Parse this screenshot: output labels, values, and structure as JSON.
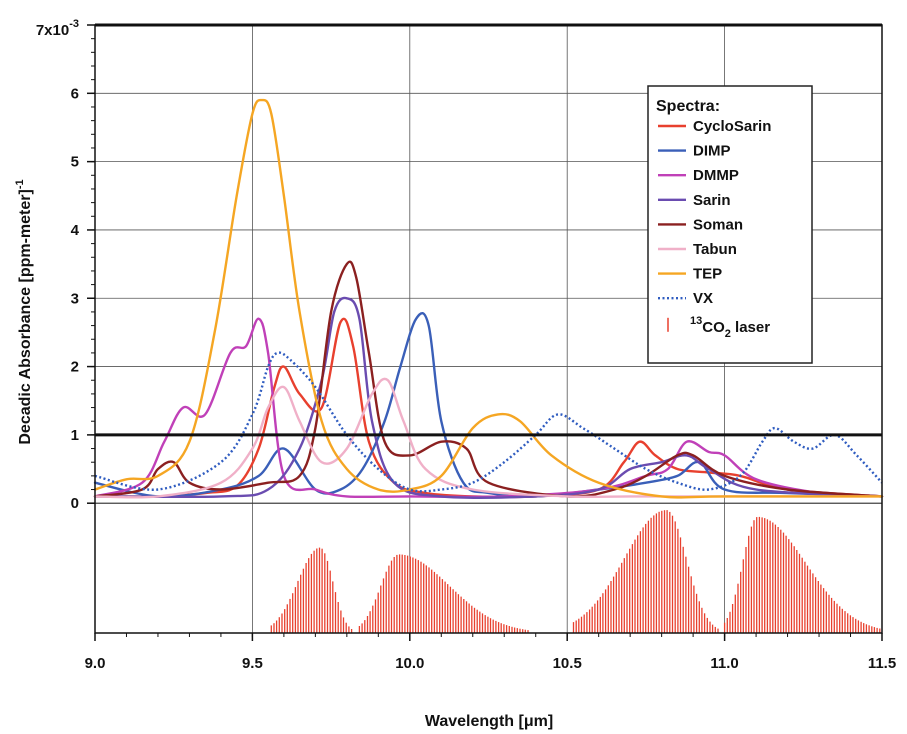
{
  "chart_data": {
    "type": "line",
    "xlabel": "Wavelength [μm]",
    "ylabel": "Decadic Absorbance [ppm-meter]",
    "ylabel_sup": "-1",
    "xlim": [
      9.0,
      11.5
    ],
    "ylim": [
      -0.0019,
      0.007
    ],
    "x_ticks": [
      "9.0",
      "9.5",
      "10.0",
      "10.5",
      "11.0",
      "11.5"
    ],
    "y_ticks": [
      "0",
      "1",
      "2",
      "3",
      "4",
      "5",
      "6"
    ],
    "y_top_tick": {
      "base": "7x10",
      "exponent": "-3"
    },
    "y_scale_factor": "x10^-3",
    "grid": true,
    "legend_title": "Spectra:",
    "legend_position": "upper-right",
    "series": [
      {
        "name": "CycloSarin",
        "color": "#e8402e",
        "style": "solid",
        "x": [
          9.0,
          9.2,
          9.35,
          9.45,
          9.52,
          9.57,
          9.6,
          9.65,
          9.72,
          9.78,
          9.82,
          9.87,
          9.95,
          10.05,
          10.2,
          10.4,
          10.6,
          10.68,
          10.73,
          10.78,
          10.85,
          10.95,
          11.05,
          11.2,
          11.5
        ],
        "y": [
          0.0001,
          0.0001,
          0.00015,
          0.00025,
          0.0008,
          0.0017,
          0.002,
          0.0016,
          0.0014,
          0.00265,
          0.0023,
          0.0009,
          0.0003,
          0.00015,
          0.0001,
          0.0001,
          0.0002,
          0.0006,
          0.0009,
          0.0007,
          0.0005,
          0.00045,
          0.0004,
          0.0002,
          0.0001
        ]
      },
      {
        "name": "DIMP",
        "color": "#3a5fb8",
        "style": "solid",
        "x": [
          9.0,
          9.2,
          9.4,
          9.52,
          9.6,
          9.7,
          9.78,
          9.85,
          9.92,
          9.97,
          10.02,
          10.06,
          10.1,
          10.17,
          10.25,
          10.4,
          10.6,
          10.75,
          10.85,
          10.92,
          11.0,
          11.2,
          11.5
        ],
        "y": [
          0.0003,
          0.0001,
          0.0002,
          0.0004,
          0.0008,
          0.0002,
          0.0002,
          0.0005,
          0.0012,
          0.002,
          0.0027,
          0.0026,
          0.0012,
          0.0003,
          0.00015,
          0.0001,
          0.0002,
          0.0003,
          0.0004,
          0.0006,
          0.0002,
          0.00015,
          0.0001
        ]
      },
      {
        "name": "DMMP",
        "color": "#c040b8",
        "style": "solid",
        "x": [
          9.0,
          9.15,
          9.22,
          9.28,
          9.35,
          9.43,
          9.48,
          9.52,
          9.55,
          9.6,
          9.7,
          9.8,
          10.0,
          10.3,
          10.6,
          10.75,
          10.82,
          10.88,
          10.95,
          11.0,
          11.1,
          11.3,
          11.5
        ],
        "y": [
          0.0001,
          0.0003,
          0.0009,
          0.0014,
          0.0013,
          0.0022,
          0.0023,
          0.0027,
          0.0022,
          0.0004,
          0.0002,
          0.0001,
          0.0001,
          0.0001,
          0.0002,
          0.0004,
          0.0005,
          0.0009,
          0.00075,
          0.0007,
          0.00035,
          0.00015,
          0.0001
        ]
      },
      {
        "name": "Sarin",
        "color": "#6a4cb0",
        "style": "solid",
        "x": [
          9.0,
          9.4,
          9.55,
          9.65,
          9.72,
          9.76,
          9.8,
          9.84,
          9.88,
          9.95,
          10.1,
          10.4,
          10.6,
          10.7,
          10.8,
          10.88,
          10.95,
          11.1,
          11.5
        ],
        "y": [
          0.0001,
          0.0001,
          0.0002,
          0.0008,
          0.0018,
          0.0028,
          0.003,
          0.0027,
          0.0012,
          0.0003,
          0.0001,
          0.0001,
          0.0002,
          0.0005,
          0.0006,
          0.0007,
          0.0005,
          0.0002,
          0.0001
        ]
      },
      {
        "name": "Soman",
        "color": "#8b2020",
        "style": "solid",
        "x": [
          9.0,
          9.15,
          9.2,
          9.25,
          9.3,
          9.4,
          9.55,
          9.65,
          9.7,
          9.75,
          9.8,
          9.83,
          9.87,
          9.92,
          10.0,
          10.1,
          10.18,
          10.25,
          10.5,
          10.65,
          10.75,
          10.85,
          10.9,
          11.0,
          11.2,
          11.5
        ],
        "y": [
          0.0001,
          0.0002,
          0.0005,
          0.0006,
          0.0003,
          0.0002,
          0.0003,
          0.0004,
          0.0011,
          0.0028,
          0.0035,
          0.0033,
          0.0022,
          0.0009,
          0.0007,
          0.0009,
          0.0008,
          0.0003,
          0.0001,
          0.0002,
          0.0004,
          0.0007,
          0.0007,
          0.0004,
          0.0002,
          0.0001
        ]
      },
      {
        "name": "Tabun",
        "color": "#f0b0c8",
        "style": "solid",
        "x": [
          9.0,
          9.2,
          9.4,
          9.5,
          9.55,
          9.6,
          9.65,
          9.72,
          9.8,
          9.88,
          9.93,
          9.98,
          10.05,
          10.2,
          10.5,
          10.7,
          11.0,
          11.5
        ],
        "y": [
          0.0001,
          0.0001,
          0.0003,
          0.0008,
          0.0014,
          0.0017,
          0.0012,
          0.0006,
          0.0008,
          0.0016,
          0.0018,
          0.0012,
          0.0005,
          0.0002,
          0.0001,
          0.0001,
          0.0001,
          0.0001
        ]
      },
      {
        "name": "TEP",
        "color": "#f5a623",
        "style": "solid",
        "x": [
          9.0,
          9.1,
          9.2,
          9.3,
          9.38,
          9.45,
          9.5,
          9.53,
          9.56,
          9.6,
          9.65,
          9.72,
          9.8,
          9.9,
          10.0,
          10.1,
          10.2,
          10.28,
          10.35,
          10.45,
          10.6,
          10.8,
          11.0,
          11.5
        ],
        "y": [
          0.0002,
          0.00035,
          0.0004,
          0.0009,
          0.0025,
          0.0045,
          0.0057,
          0.0059,
          0.0057,
          0.0045,
          0.0028,
          0.0012,
          0.0005,
          0.0002,
          0.0002,
          0.0004,
          0.0011,
          0.0013,
          0.0012,
          0.0007,
          0.0003,
          0.0001,
          0.0001,
          0.0001
        ]
      },
      {
        "name": "VX",
        "color": "#2f5cc0",
        "style": "dotted",
        "x": [
          9.0,
          9.2,
          9.4,
          9.5,
          9.55,
          9.58,
          9.62,
          9.7,
          9.8,
          9.9,
          10.0,
          10.1,
          10.2,
          10.3,
          10.4,
          10.47,
          10.55,
          10.65,
          10.75,
          10.85,
          10.95,
          11.05,
          11.12,
          11.16,
          11.22,
          11.28,
          11.35,
          11.42,
          11.5
        ],
        "y": [
          0.0004,
          0.0002,
          0.0006,
          0.0013,
          0.002,
          0.0022,
          0.0021,
          0.0017,
          0.001,
          0.0005,
          0.0002,
          0.0002,
          0.0003,
          0.0006,
          0.001,
          0.0013,
          0.0011,
          0.0008,
          0.0005,
          0.0003,
          0.0002,
          0.0004,
          0.0009,
          0.0011,
          0.0009,
          0.0008,
          0.001,
          0.0007,
          0.0003
        ]
      },
      {
        "name": "CO2 laser",
        "legend_label_sup": "13",
        "legend_label_main": "CO",
        "legend_label_sub": "2",
        "legend_label_tail": " laser",
        "color": "#e8402e",
        "style": "bars",
        "bands": [
          {
            "center": 9.715,
            "start": 9.56,
            "end": 9.82,
            "peak": -0.00065
          },
          {
            "center": 9.965,
            "start": 9.84,
            "end": 10.38,
            "peak": -0.00075
          },
          {
            "center": 10.815,
            "start": 10.52,
            "end": 10.98,
            "peak": -0.0001
          },
          {
            "center": 11.105,
            "start": 11.0,
            "end": 11.5,
            "peak": -0.0002
          }
        ],
        "baseline": -0.0019
      }
    ]
  }
}
